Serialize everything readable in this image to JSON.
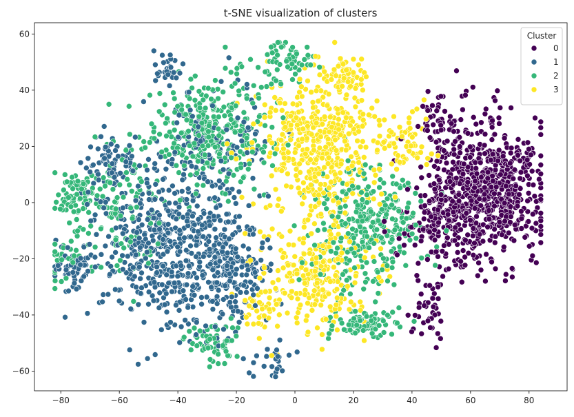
{
  "chart_data": {
    "type": "scatter",
    "title": "t-SNE visualization of clusters",
    "xlabel": "",
    "ylabel": "",
    "xlim": [
      -89,
      93
    ],
    "ylim": [
      -67,
      64
    ],
    "x_ticks": [
      -80,
      -60,
      -40,
      -20,
      0,
      20,
      40,
      60,
      80
    ],
    "y_ticks": [
      -60,
      -40,
      -20,
      0,
      20,
      40,
      60
    ],
    "grid": false,
    "legend": {
      "title": "Cluster",
      "position": "top-right",
      "entries": [
        "0",
        "1",
        "2",
        "3"
      ]
    },
    "series": [
      {
        "name": "0",
        "color": "#440154",
        "regions": [
          {
            "cx": 65,
            "cy": 5,
            "sx": 10,
            "sy": 12,
            "n": 700
          },
          {
            "cx": 50,
            "cy": -8,
            "sx": 7,
            "sy": 8,
            "n": 140
          },
          {
            "cx": 45,
            "cy": -37,
            "sx": 3,
            "sy": 6,
            "n": 40
          },
          {
            "cx": 49,
            "cy": 31,
            "sx": 4,
            "sy": 4,
            "n": 40
          }
        ]
      },
      {
        "name": "1",
        "color": "#31688e",
        "regions": [
          {
            "cx": -43,
            "cy": -15,
            "sx": 12,
            "sy": 14,
            "n": 520
          },
          {
            "cx": -24,
            "cy": -25,
            "sx": 8,
            "sy": 10,
            "n": 220
          },
          {
            "cx": -62,
            "cy": 14,
            "sx": 5,
            "sy": 6,
            "n": 80
          },
          {
            "cx": -76,
            "cy": -24,
            "sx": 4,
            "sy": 5,
            "n": 60
          },
          {
            "cx": -43,
            "cy": 48,
            "sx": 3,
            "sy": 3,
            "n": 30
          },
          {
            "cx": -8,
            "cy": -57,
            "sx": 3,
            "sy": 3,
            "n": 25
          },
          {
            "cx": -30,
            "cy": 20,
            "sx": 10,
            "sy": 10,
            "n": 120
          }
        ]
      },
      {
        "name": "2",
        "color": "#35b779",
        "regions": [
          {
            "cx": -28,
            "cy": 25,
            "sx": 10,
            "sy": 10,
            "n": 320
          },
          {
            "cx": 25,
            "cy": -10,
            "sx": 9,
            "sy": 11,
            "n": 320
          },
          {
            "cx": -75,
            "cy": 2,
            "sx": 4,
            "sy": 5,
            "n": 80
          },
          {
            "cx": -28,
            "cy": -50,
            "sx": 4,
            "sy": 4,
            "n": 60
          },
          {
            "cx": 25,
            "cy": -43,
            "sx": 6,
            "sy": 3,
            "n": 80
          },
          {
            "cx": -3,
            "cy": 50,
            "sx": 5,
            "sy": 4,
            "n": 60
          },
          {
            "cx": -58,
            "cy": 0,
            "sx": 8,
            "sy": 12,
            "n": 120
          },
          {
            "cx": -78,
            "cy": -20,
            "sx": 3,
            "sy": 4,
            "n": 30
          }
        ]
      },
      {
        "name": "3",
        "color": "#fde725",
        "regions": [
          {
            "cx": 8,
            "cy": 20,
            "sx": 10,
            "sy": 12,
            "n": 480
          },
          {
            "cx": 8,
            "cy": -25,
            "sx": 9,
            "sy": 10,
            "n": 260
          },
          {
            "cx": 17,
            "cy": 46,
            "sx": 4,
            "sy": 3,
            "n": 60
          },
          {
            "cx": 38,
            "cy": 22,
            "sx": 5,
            "sy": 6,
            "n": 60
          },
          {
            "cx": -12,
            "cy": -38,
            "sx": 4,
            "sy": 5,
            "n": 40
          }
        ]
      }
    ]
  }
}
